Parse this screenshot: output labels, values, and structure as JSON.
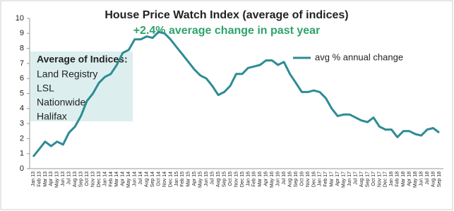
{
  "chart_data": {
    "type": "line",
    "title": "House Price Watch Index (average of indices)",
    "subtitle": "+2.4% average change in past year",
    "categories": [
      "Jan 13",
      "Feb 13",
      "Mar 13",
      "Apr 13",
      "May 13",
      "Jun 13",
      "Jul 13",
      "Aug 13",
      "Sep 13",
      "Oct 13",
      "Nov 13",
      "Dec 13",
      "Jan 14",
      "Feb 14",
      "Mar 14",
      "Apr 14",
      "May 14",
      "Jun 14",
      "Jul 14",
      "Aug 14",
      "Sep 14",
      "Oct 14",
      "Nov 14",
      "Dec 14",
      "Jan 15",
      "Feb 15",
      "Mar 15",
      "Apr 15",
      "May 15",
      "Jun 15",
      "Jul 15",
      "Aug 15",
      "Sep 15",
      "Oct 15",
      "Nov 15",
      "Dec 15",
      "Jan 16",
      "Feb 16",
      "Mar 16",
      "Apr 16",
      "May 16",
      "Jun 16",
      "Jul 16",
      "Aug 16",
      "Sep 16",
      "Oct 16",
      "Nov 16",
      "Dec 16",
      "Jan 17",
      "Feb 17",
      "Mar 17",
      "Apr 17",
      "May 17",
      "Jun 17",
      "Jul 17",
      "Aug 17",
      "Sep 17",
      "Oct 17",
      "Nov 17",
      "Dec 17",
      "Jan 18",
      "Feb 18",
      "Mar 18",
      "Apr 18",
      "May 18",
      "Jun 18",
      "Jul 18",
      "Aug 18",
      "Sep 18"
    ],
    "series": [
      {
        "name": "avg % annual change",
        "color": "#2e8b95",
        "values": [
          0.8,
          1.3,
          1.8,
          1.5,
          1.8,
          1.6,
          2.4,
          2.8,
          3.5,
          4.5,
          5.0,
          5.7,
          6.1,
          6.3,
          6.9,
          7.7,
          7.9,
          8.6,
          8.6,
          8.8,
          8.7,
          9.1,
          9.0,
          8.6,
          8.1,
          7.6,
          7.1,
          6.6,
          6.2,
          6.0,
          5.5,
          4.9,
          5.1,
          5.5,
          6.3,
          6.3,
          6.7,
          6.8,
          6.9,
          7.2,
          7.2,
          6.9,
          7.1,
          6.3,
          5.7,
          5.1,
          5.1,
          5.2,
          5.1,
          4.7,
          4.0,
          3.5,
          3.6,
          3.6,
          3.4,
          3.2,
          3.1,
          3.4,
          2.8,
          2.6,
          2.6,
          2.1,
          2.5,
          2.5,
          2.3,
          2.2,
          2.6,
          2.7,
          2.4
        ]
      }
    ],
    "ylim": [
      0,
      10
    ],
    "yticks": [
      0,
      1,
      2,
      3,
      4,
      5,
      6,
      7,
      8,
      9,
      10
    ],
    "grid": false,
    "legend": "top-right",
    "annotation": {
      "title": "Average of Indices:",
      "items": [
        "Land Registry",
        "LSL",
        "Nationwide",
        "Halifax"
      ]
    }
  }
}
